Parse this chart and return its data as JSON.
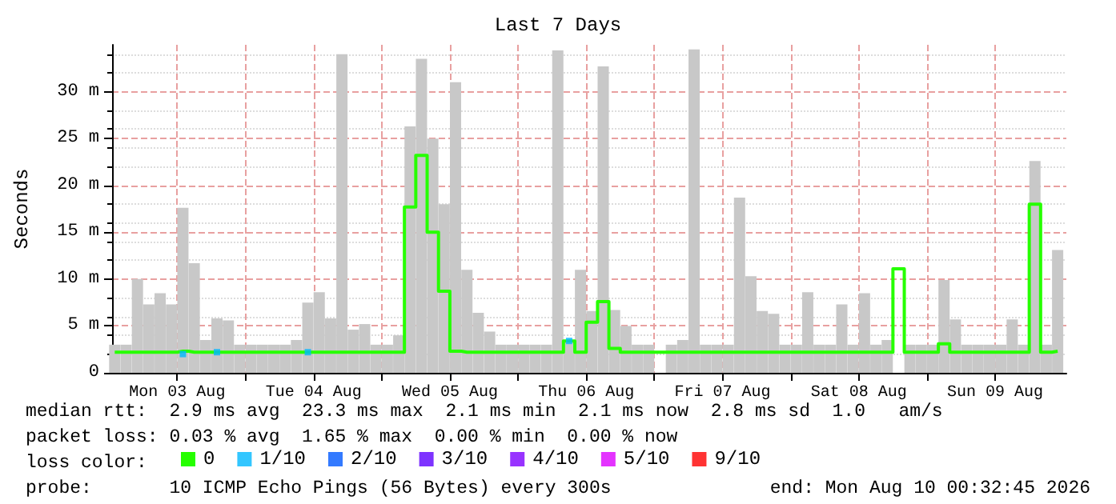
{
  "chart_data": {
    "type": "bar",
    "title": "Last 7 Days",
    "ylabel": "Seconds",
    "legend_title": "loss color:",
    "legend": "bottom",
    "grid": true,
    "x": [
      "2026-08-03T01:00",
      "2026-08-03T03:00",
      "2026-08-03T05:00",
      "2026-08-03T07:00",
      "2026-08-03T09:00",
      "2026-08-03T11:00",
      "2026-08-03T13:00",
      "2026-08-03T15:00",
      "2026-08-03T17:00",
      "2026-08-03T19:00",
      "2026-08-03T21:00",
      "2026-08-03T23:00",
      "2026-08-04T01:00",
      "2026-08-04T03:00",
      "2026-08-04T05:00",
      "2026-08-04T07:00",
      "2026-08-04T09:00",
      "2026-08-04T11:00",
      "2026-08-04T13:00",
      "2026-08-04T15:00",
      "2026-08-04T17:00",
      "2026-08-04T19:00",
      "2026-08-04T21:00",
      "2026-08-04T23:00",
      "2026-08-05T01:00",
      "2026-08-05T03:00",
      "2026-08-05T05:00",
      "2026-08-05T07:00",
      "2026-08-05T09:00",
      "2026-08-05T11:00",
      "2026-08-05T13:00",
      "2026-08-05T15:00",
      "2026-08-05T17:00",
      "2026-08-05T19:00",
      "2026-08-05T21:00",
      "2026-08-05T23:00",
      "2026-08-06T01:00",
      "2026-08-06T03:00",
      "2026-08-06T05:00",
      "2026-08-06T07:00",
      "2026-08-06T09:00",
      "2026-08-06T11:00",
      "2026-08-06T13:00",
      "2026-08-06T15:00",
      "2026-08-06T17:00",
      "2026-08-06T19:00",
      "2026-08-06T21:00",
      "2026-08-06T23:00",
      "2026-08-07T01:00",
      "2026-08-07T03:00",
      "2026-08-07T05:00",
      "2026-08-07T07:00",
      "2026-08-07T09:00",
      "2026-08-07T11:00",
      "2026-08-07T13:00",
      "2026-08-07T15:00",
      "2026-08-07T17:00",
      "2026-08-07T19:00",
      "2026-08-07T21:00",
      "2026-08-07T23:00",
      "2026-08-08T01:00",
      "2026-08-08T03:00",
      "2026-08-08T05:00",
      "2026-08-08T07:00",
      "2026-08-08T09:00",
      "2026-08-08T11:00",
      "2026-08-08T13:00",
      "2026-08-08T15:00",
      "2026-08-08T17:00",
      "2026-08-08T19:00",
      "2026-08-08T21:00",
      "2026-08-08T23:00",
      "2026-08-09T01:00",
      "2026-08-09T03:00",
      "2026-08-09T05:00",
      "2026-08-09T07:00",
      "2026-08-09T09:00",
      "2026-08-09T11:00",
      "2026-08-09T13:00",
      "2026-08-09T15:00",
      "2026-08-09T17:00",
      "2026-08-09T19:00",
      "2026-08-09T21:00",
      "2026-08-09T23:00"
    ],
    "series": [
      {
        "color": "#c8c8c8",
        "values": [
          3,
          3,
          10,
          7.3,
          8.5,
          7.3,
          17.6,
          11.7,
          3.5,
          5.8,
          5.6,
          3,
          3,
          3,
          3,
          3,
          3.5,
          7.5,
          8.6,
          5.8,
          34,
          4.6,
          5.2,
          3,
          3,
          4,
          26.3,
          33.5,
          25,
          18,
          31,
          11,
          6.4,
          4.4,
          3,
          3,
          3,
          3,
          3,
          34.4,
          3.5,
          11,
          6.6,
          32.7,
          6.7,
          5,
          3,
          3,
          null,
          3,
          3.5,
          34.5,
          3,
          3,
          3,
          18.7,
          10.3,
          6.6,
          6.3,
          3,
          3,
          8.6,
          3,
          3,
          7.3,
          3,
          8.5,
          3,
          3.5,
          null,
          3,
          3,
          3,
          9.9,
          5.7,
          3,
          3,
          3,
          3,
          5.7,
          3,
          22.6,
          3,
          13.1
        ]
      },
      {
        "type": "step",
        "name": "0",
        "color": "#26ff00",
        "values": [
          2.2,
          2.2,
          2.2,
          2.2,
          2.2,
          2.2,
          2.3,
          2.2,
          2.2,
          2.2,
          2.2,
          2.2,
          2.2,
          2.2,
          2.2,
          2.2,
          2.2,
          2.2,
          2.2,
          2.2,
          2.2,
          2.2,
          2.2,
          2.2,
          2.2,
          2.2,
          17.7,
          23.2,
          15,
          8.7,
          2.3,
          2.2,
          2.2,
          2.2,
          2.2,
          2.2,
          2.2,
          2.2,
          2.2,
          2.2,
          3.4,
          2.2,
          5.4,
          7.6,
          2.6,
          2.2,
          2.2,
          2.2,
          2.2,
          2.2,
          2.2,
          2.2,
          2.2,
          2.2,
          2.2,
          2.2,
          2.2,
          2.2,
          2.2,
          2.2,
          2.2,
          2.2,
          2.2,
          2.2,
          2.2,
          2.2,
          2.2,
          2.2,
          2.2,
          11.1,
          2.2,
          2.2,
          2.2,
          3.1,
          2.2,
          2.2,
          2.2,
          2.2,
          2.2,
          2.2,
          2.2,
          18,
          2.2,
          2.3
        ]
      },
      {
        "type": "scatter",
        "name": "1/10",
        "color": "#00b8ff",
        "marker": "square",
        "x": [
          "2026-08-03T13:00",
          "2026-08-03T19:00",
          "2026-08-04T11:00",
          "2026-08-06T09:00"
        ],
        "values": [
          2,
          2.2,
          2.2,
          3.4
        ]
      },
      {
        "type": "scatter",
        "name": "2/10",
        "color": "#0059ff",
        "marker": "square",
        "values": [
          null,
          null,
          null,
          null,
          null,
          null,
          null,
          null,
          null,
          null,
          null,
          null,
          null,
          null,
          null,
          null,
          null,
          null,
          null,
          null,
          null,
          null,
          null,
          null,
          null,
          null,
          null,
          null,
          null,
          null,
          null,
          null,
          null,
          null,
          null,
          null,
          null,
          null,
          null,
          null,
          null,
          null,
          null,
          null,
          null,
          null,
          null,
          null,
          null,
          null,
          null,
          null,
          null,
          null,
          null,
          null,
          null,
          null,
          null,
          null,
          null,
          null,
          null,
          null,
          null,
          null,
          null,
          null,
          null,
          null,
          null,
          null,
          null,
          null,
          null,
          null,
          null,
          null,
          null,
          null,
          null,
          null,
          null,
          null
        ]
      },
      {
        "type": "scatter",
        "name": "3/10",
        "color": "#5e00ff",
        "marker": "square",
        "values": [
          null,
          null,
          null,
          null,
          null,
          null,
          null,
          null,
          null,
          null,
          null,
          null,
          null,
          null,
          null,
          null,
          null,
          null,
          null,
          null,
          null,
          null,
          null,
          null,
          null,
          null,
          null,
          null,
          null,
          null,
          null,
          null,
          null,
          null,
          null,
          null,
          null,
          null,
          null,
          null,
          null,
          null,
          null,
          null,
          null,
          null,
          null,
          null,
          null,
          null,
          null,
          null,
          null,
          null,
          null,
          null,
          null,
          null,
          null,
          null,
          null,
          null,
          null,
          null,
          null,
          null,
          null,
          null,
          null,
          null,
          null,
          null,
          null,
          null,
          null,
          null,
          null,
          null,
          null,
          null,
          null,
          null,
          null,
          null
        ]
      },
      {
        "type": "scatter",
        "name": "4/10",
        "color": "#7e00ff",
        "marker": "square",
        "values": [
          null,
          null,
          null,
          null,
          null,
          null,
          null,
          null,
          null,
          null,
          null,
          null,
          null,
          null,
          null,
          null,
          null,
          null,
          null,
          null,
          null,
          null,
          null,
          null,
          null,
          null,
          null,
          null,
          null,
          null,
          null,
          null,
          null,
          null,
          null,
          null,
          null,
          null,
          null,
          null,
          null,
          null,
          null,
          null,
          null,
          null,
          null,
          null,
          null,
          null,
          null,
          null,
          null,
          null,
          null,
          null,
          null,
          null,
          null,
          null,
          null,
          null,
          null,
          null,
          null,
          null,
          null,
          null,
          null,
          null,
          null,
          null,
          null,
          null,
          null,
          null,
          null,
          null,
          null,
          null,
          null,
          null,
          null,
          null
        ]
      },
      {
        "type": "scatter",
        "name": "5/10",
        "color": "#dd00ff",
        "marker": "square",
        "values": [
          null,
          null,
          null,
          null,
          null,
          null,
          null,
          null,
          null,
          null,
          null,
          null,
          null,
          null,
          null,
          null,
          null,
          null,
          null,
          null,
          null,
          null,
          null,
          null,
          null,
          null,
          null,
          null,
          null,
          null,
          null,
          null,
          null,
          null,
          null,
          null,
          null,
          null,
          null,
          null,
          null,
          null,
          null,
          null,
          null,
          null,
          null,
          null,
          null,
          null,
          null,
          null,
          null,
          null,
          null,
          null,
          null,
          null,
          null,
          null,
          null,
          null,
          null,
          null,
          null,
          null,
          null,
          null,
          null,
          null,
          null,
          null,
          null,
          null,
          null,
          null,
          null,
          null,
          null,
          null,
          null,
          null,
          null,
          null
        ]
      },
      {
        "type": "scatter",
        "name": "9/10",
        "color": "#ff0000",
        "marker": "square",
        "values": [
          null,
          null,
          null,
          null,
          null,
          null,
          null,
          null,
          null,
          null,
          null,
          null,
          null,
          null,
          null,
          null,
          null,
          null,
          null,
          null,
          null,
          null,
          null,
          null,
          null,
          null,
          null,
          null,
          null,
          null,
          null,
          null,
          null,
          null,
          null,
          null,
          null,
          null,
          null,
          null,
          null,
          null,
          null,
          null,
          null,
          null,
          null,
          null,
          null,
          null,
          null,
          null,
          null,
          null,
          null,
          null,
          null,
          null,
          null,
          null,
          null,
          null,
          null,
          null,
          null,
          null,
          null,
          null,
          null,
          null,
          null,
          null,
          null,
          null,
          null,
          null,
          null,
          null,
          null,
          null,
          null,
          null,
          null,
          null
        ]
      }
    ],
    "xlim": [
      "2026-08-03T00:32",
      "2026-08-10T00:32"
    ],
    "xticks": [
      {
        "value": "2026-08-03T12:00",
        "label": "Mon 03 Aug"
      },
      {
        "value": "2026-08-04T00:00",
        "label": null
      },
      {
        "value": "2026-08-04T12:00",
        "label": "Tue 04 Aug"
      },
      {
        "value": "2026-08-05T00:00",
        "label": null
      },
      {
        "value": "2026-08-05T12:00",
        "label": "Wed 05 Aug"
      },
      {
        "value": "2026-08-06T00:00",
        "label": null
      },
      {
        "value": "2026-08-06T12:00",
        "label": "Thu 06 Aug"
      },
      {
        "value": "2026-08-07T00:00",
        "label": null
      },
      {
        "value": "2026-08-07T12:00",
        "label": "Fri 07 Aug"
      },
      {
        "value": "2026-08-08T00:00",
        "label": null
      },
      {
        "value": "2026-08-08T12:00",
        "label": "Sat 08 Aug"
      },
      {
        "value": "2026-08-09T00:00",
        "label": null
      },
      {
        "value": "2026-08-09T12:00",
        "label": "Sun 09 Aug"
      }
    ],
    "ylim": [
      0,
      35
    ],
    "yticks": [
      0,
      {
        "value": 5,
        "label": "5 m"
      },
      {
        "value": 10,
        "label": "10 m"
      },
      {
        "value": 15,
        "label": "15 m"
      },
      {
        "value": 20,
        "label": "20 m"
      },
      {
        "value": 25,
        "label": "25 m"
      },
      {
        "value": 30,
        "label": "30 m"
      }
    ],
    "annotations": [
      "median rtt:  2.9 ms avg  23.3 ms max  2.1 ms min  2.1 ms now  2.8 ms sd  1.0   am/s",
      "packet loss: 0.03 % avg  1.65 % max  0.00 % min  0.00 % now",
      "probe:       10 ICMP Echo Pings (56 Bytes) every 300s",
      "end: Mon Aug 10 00:32:45 2026"
    ]
  }
}
